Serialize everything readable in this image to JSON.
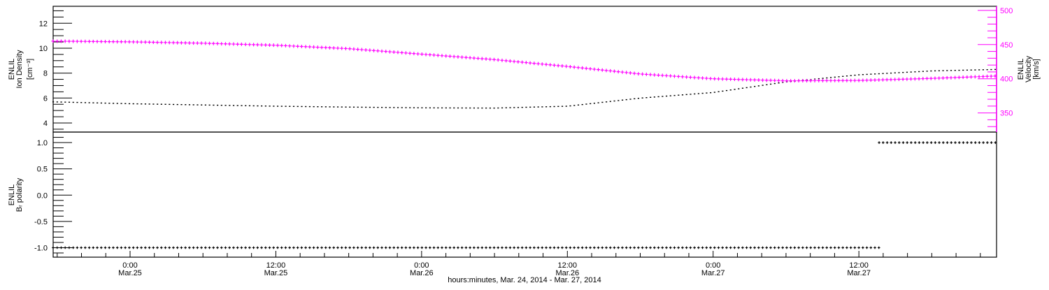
{
  "chart_data": [
    {
      "type": "line",
      "panel": "top",
      "xlabel": "hours:minutes, Mar. 24, 2014 - Mar. 27, 2014",
      "xlim": [
        "2014-03-24 17:40",
        "2014-03-27 23:20"
      ],
      "x_ticks": [
        {
          "time": "2014-03-25 00:00",
          "label": "0:00",
          "sublabel": "Mar.25"
        },
        {
          "time": "2014-03-25 12:00",
          "label": "12:00",
          "sublabel": "Mar.25"
        },
        {
          "time": "2014-03-26 00:00",
          "label": "0:00",
          "sublabel": "Mar.26"
        },
        {
          "time": "2014-03-26 12:00",
          "label": "12:00",
          "sublabel": "Mar.26"
        },
        {
          "time": "2014-03-27 00:00",
          "label": "0:00",
          "sublabel": "Mar.27"
        },
        {
          "time": "2014-03-27 12:00",
          "label": "12:00",
          "sublabel": "Mar.27"
        }
      ],
      "left_axis": {
        "label_lines": [
          "ENLIL",
          "Ion Density",
          "[cm⁻³]"
        ],
        "ylim": [
          3.27,
          13.36
        ],
        "ticks": [
          "4",
          "6",
          "8",
          "10",
          "12"
        ],
        "color": "#000000"
      },
      "right_axis": {
        "label_lines": [
          "ENLIL",
          "Velocity",
          "[km/s]"
        ],
        "ylim": [
          322,
          506
        ],
        "ticks": [
          "350",
          "400",
          "450",
          "500"
        ],
        "color": "#ff00ff"
      },
      "series": [
        {
          "axis": "left",
          "color": "#000000",
          "marker": "dot",
          "x": [
            "2014-03-24 17:40",
            "2014-03-25 00:00",
            "2014-03-25 06:00",
            "2014-03-25 12:00",
            "2014-03-25 18:00",
            "2014-03-26 00:00",
            "2014-03-26 06:00",
            "2014-03-26 12:00",
            "2014-03-26 18:00",
            "2014-03-27 00:00",
            "2014-03-27 06:00",
            "2014-03-27 12:00",
            "2014-03-27 18:00",
            "2014-03-27 23:20"
          ],
          "y": [
            5.7,
            5.55,
            5.45,
            5.35,
            5.28,
            5.22,
            5.2,
            5.35,
            6.0,
            6.45,
            7.3,
            7.87,
            8.18,
            8.3
          ]
        },
        {
          "axis": "right",
          "color": "#ff00ff",
          "marker": "plus",
          "x": [
            "2014-03-24 17:40",
            "2014-03-25 00:00",
            "2014-03-25 06:00",
            "2014-03-25 12:00",
            "2014-03-25 18:00",
            "2014-03-26 00:00",
            "2014-03-26 06:00",
            "2014-03-26 12:00",
            "2014-03-26 18:00",
            "2014-03-27 00:00",
            "2014-03-27 06:00",
            "2014-03-27 12:00",
            "2014-03-27 18:00",
            "2014-03-27 23:20"
          ],
          "y": [
            455,
            454,
            452,
            449,
            444,
            436,
            428,
            418,
            407,
            400,
            397,
            397.5,
            400.5,
            404
          ]
        }
      ]
    },
    {
      "type": "scatter",
      "panel": "bottom",
      "left_axis": {
        "label_lines": [
          "ENLIL",
          "Bᵣ polarity"
        ],
        "ylim": [
          -1.18,
          1.2
        ],
        "ticks": [
          "-1.0",
          "-0.5",
          "0.0",
          "0.5",
          "1.0"
        ]
      },
      "series": [
        {
          "color": "#000000",
          "marker": "plus",
          "segments": [
            {
              "from": "2014-03-24 17:40",
              "to": "2014-03-27 13:40",
              "y": -1
            },
            {
              "from": "2014-03-27 13:40",
              "to": "2014-03-27 23:20",
              "y": 1
            }
          ]
        }
      ]
    }
  ]
}
